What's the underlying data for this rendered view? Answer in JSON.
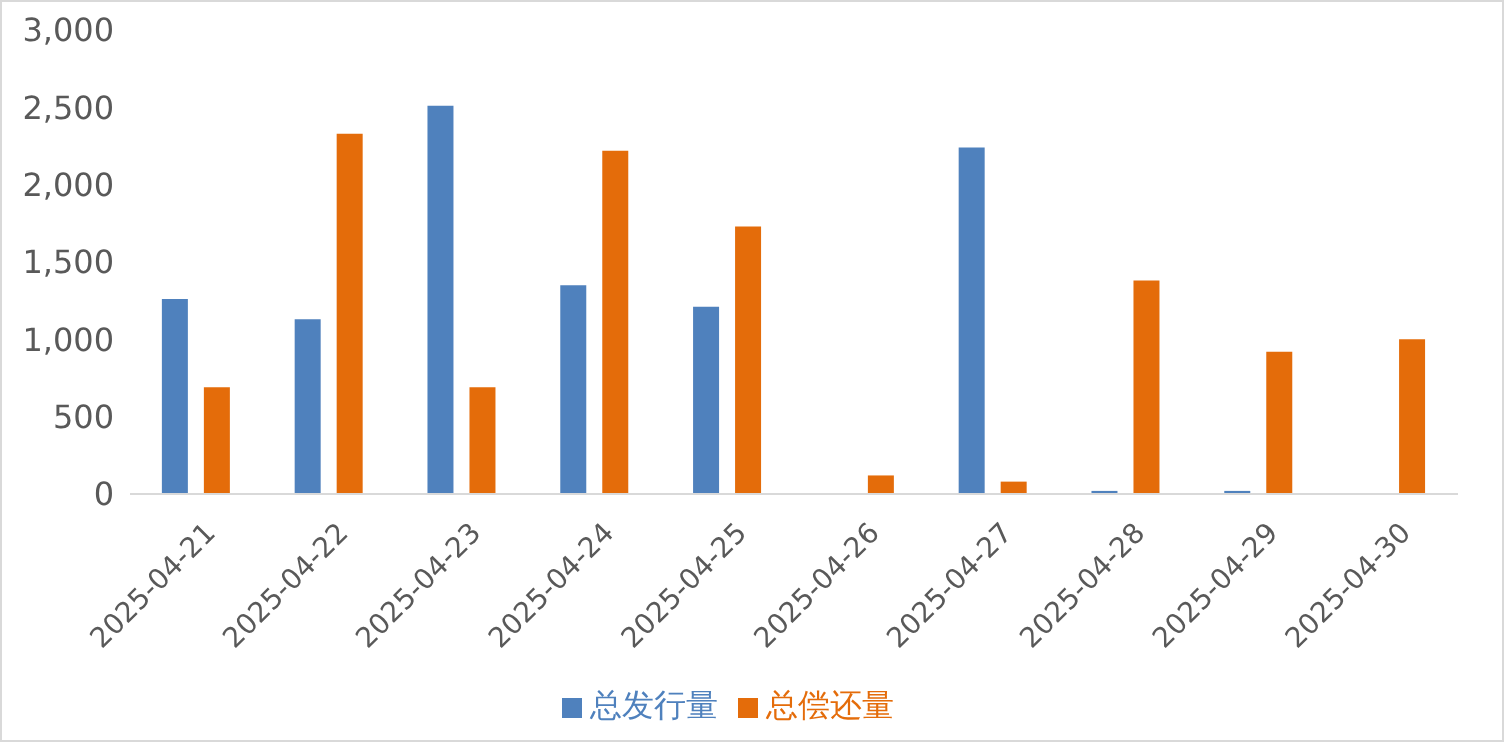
{
  "chart_data": {
    "type": "bar",
    "categories": [
      "2025-04-21",
      "2025-04-22",
      "2025-04-23",
      "2025-04-24",
      "2025-04-25",
      "2025-04-26",
      "2025-04-27",
      "2025-04-28",
      "2025-04-29",
      "2025-04-30"
    ],
    "series": [
      {
        "name": "总发行量",
        "color": "#4f81bd",
        "values": [
          1260,
          1130,
          2510,
          1350,
          1210,
          0,
          2240,
          20,
          20,
          0
        ]
      },
      {
        "name": "总偿还量",
        "color": "#e46c0a",
        "values": [
          690,
          2330,
          690,
          2220,
          1730,
          120,
          80,
          1380,
          920,
          1000
        ]
      }
    ],
    "ylim": [
      0,
      3000
    ],
    "yticks": [
      {
        "value": 0,
        "label": "0"
      },
      {
        "value": 500,
        "label": "500"
      },
      {
        "value": 1000,
        "label": "1,000"
      },
      {
        "value": 1500,
        "label": "1,500"
      },
      {
        "value": 2000,
        "label": "2,000"
      },
      {
        "value": 2500,
        "label": "2,500"
      },
      {
        "value": 3000,
        "label": "3,000"
      }
    ],
    "grid": false,
    "legend": "bottom"
  }
}
